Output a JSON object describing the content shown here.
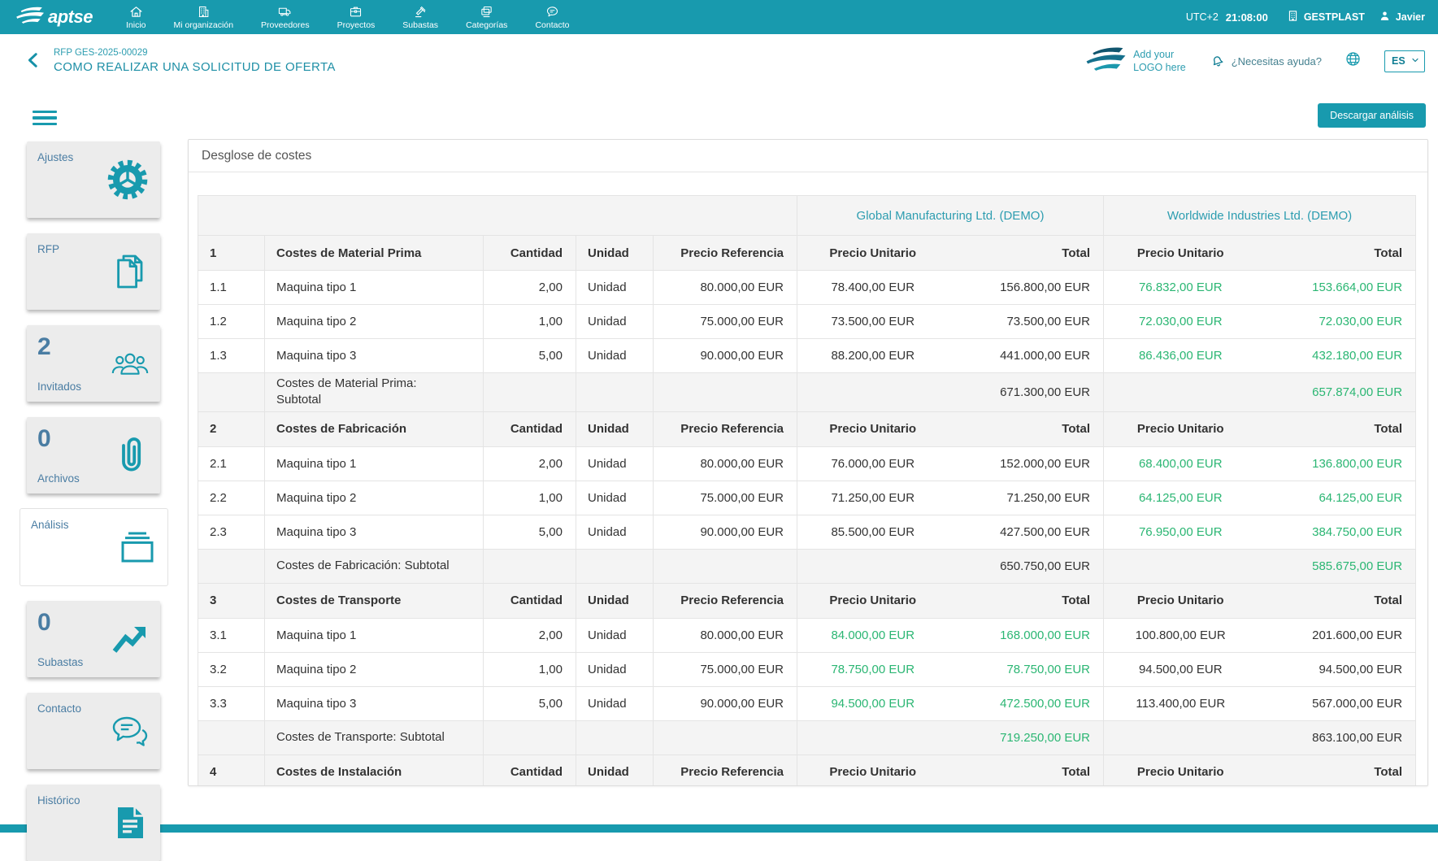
{
  "topnav": {
    "brand": "aptse",
    "items": [
      {
        "label": "Inicio",
        "icon": "home"
      },
      {
        "label": "Mi organización",
        "icon": "organization"
      },
      {
        "label": "Proveedores",
        "icon": "truck"
      },
      {
        "label": "Proyectos",
        "icon": "briefcase"
      },
      {
        "label": "Subastas",
        "icon": "auction"
      },
      {
        "label": "Categorías",
        "icon": "categories"
      },
      {
        "label": "Contacto",
        "icon": "chat"
      }
    ],
    "timezone": "UTC+2",
    "time": "21:08:00",
    "organization": "GESTPLAST",
    "user": "Javier"
  },
  "header": {
    "breadcrumb": "RFP GES-2025-00029",
    "title": "COMO REALIZAR UNA SOLICITUD DE OFERTA",
    "logo_placeholder_line1": "Add your",
    "logo_placeholder_line2": "LOGO here",
    "help_label": "¿Necesitas ayuda?",
    "language": "ES"
  },
  "toolbar": {
    "download_button": "Descargar análisis"
  },
  "sidebar": [
    {
      "label": "Ajustes",
      "icon": "gear",
      "count": "",
      "active": false
    },
    {
      "label": "RFP",
      "icon": "documents",
      "count": "",
      "active": false
    },
    {
      "label": "Invitados",
      "icon": "people",
      "count": "2",
      "active": false
    },
    {
      "label": "Archivos",
      "icon": "paperclip",
      "count": "0",
      "active": false
    },
    {
      "label": "Análisis",
      "icon": "panels",
      "count": "",
      "active": true
    },
    {
      "label": "Subastas",
      "icon": "trend",
      "count": "0",
      "active": false
    },
    {
      "label": "Contacto",
      "icon": "chatDouble",
      "count": "",
      "active": false
    },
    {
      "label": "Histórico",
      "icon": "historyDoc",
      "count": "",
      "active": false
    }
  ],
  "panel": {
    "title": "Desglose de costes",
    "suppliers": [
      "Global Manufacturing Ltd. (DEMO)",
      "Worldwide Industries Ltd. (DEMO)"
    ],
    "headers": {
      "cantidad": "Cantidad",
      "unidad": "Unidad",
      "precio_referencia": "Precio Referencia",
      "precio_unitario": "Precio Unitario",
      "total": "Total"
    },
    "sections": [
      {
        "num": "1",
        "name": "Costes de Material Prima",
        "items": [
          {
            "num": "1.1",
            "name": "Maquina tipo 1",
            "qty": "2,00",
            "unit": "Unidad",
            "ref": "80.000,00 EUR",
            "s1_unit": "78.400,00 EUR",
            "s1_total": "156.800,00 EUR",
            "s2_unit": "76.832,00 EUR",
            "s2_total": "153.664,00 EUR",
            "s1_best": false,
            "s2_best": true
          },
          {
            "num": "1.2",
            "name": "Maquina tipo 2",
            "qty": "1,00",
            "unit": "Unidad",
            "ref": "75.000,00 EUR",
            "s1_unit": "73.500,00 EUR",
            "s1_total": "73.500,00 EUR",
            "s2_unit": "72.030,00 EUR",
            "s2_total": "72.030,00 EUR",
            "s1_best": false,
            "s2_best": true
          },
          {
            "num": "1.3",
            "name": "Maquina tipo 3",
            "qty": "5,00",
            "unit": "Unidad",
            "ref": "90.000,00 EUR",
            "s1_unit": "88.200,00 EUR",
            "s1_total": "441.000,00 EUR",
            "s2_unit": "86.436,00 EUR",
            "s2_total": "432.180,00 EUR",
            "s1_best": false,
            "s2_best": true
          }
        ],
        "subtotal_label": "Costes de Material Prima: Subtotal",
        "s1_subtotal": "671.300,00 EUR",
        "s2_subtotal": "657.874,00 EUR",
        "s1_subtotal_best": false,
        "s2_subtotal_best": true
      },
      {
        "num": "2",
        "name": "Costes de Fabricación",
        "items": [
          {
            "num": "2.1",
            "name": "Maquina tipo 1",
            "qty": "2,00",
            "unit": "Unidad",
            "ref": "80.000,00 EUR",
            "s1_unit": "76.000,00 EUR",
            "s1_total": "152.000,00 EUR",
            "s2_unit": "68.400,00 EUR",
            "s2_total": "136.800,00 EUR",
            "s1_best": false,
            "s2_best": true
          },
          {
            "num": "2.2",
            "name": "Maquina tipo 2",
            "qty": "1,00",
            "unit": "Unidad",
            "ref": "75.000,00 EUR",
            "s1_unit": "71.250,00 EUR",
            "s1_total": "71.250,00 EUR",
            "s2_unit": "64.125,00 EUR",
            "s2_total": "64.125,00 EUR",
            "s1_best": false,
            "s2_best": true
          },
          {
            "num": "2.3",
            "name": "Maquina tipo 3",
            "qty": "5,00",
            "unit": "Unidad",
            "ref": "90.000,00 EUR",
            "s1_unit": "85.500,00 EUR",
            "s1_total": "427.500,00 EUR",
            "s2_unit": "76.950,00 EUR",
            "s2_total": "384.750,00 EUR",
            "s1_best": false,
            "s2_best": true
          }
        ],
        "subtotal_label": "Costes de Fabricación: Subtotal",
        "s1_subtotal": "650.750,00 EUR",
        "s2_subtotal": "585.675,00 EUR",
        "s1_subtotal_best": false,
        "s2_subtotal_best": true
      },
      {
        "num": "3",
        "name": "Costes de Transporte",
        "items": [
          {
            "num": "3.1",
            "name": "Maquina tipo 1",
            "qty": "2,00",
            "unit": "Unidad",
            "ref": "80.000,00 EUR",
            "s1_unit": "84.000,00 EUR",
            "s1_total": "168.000,00 EUR",
            "s2_unit": "100.800,00 EUR",
            "s2_total": "201.600,00 EUR",
            "s1_best": true,
            "s2_best": false
          },
          {
            "num": "3.2",
            "name": "Maquina tipo 2",
            "qty": "1,00",
            "unit": "Unidad",
            "ref": "75.000,00 EUR",
            "s1_unit": "78.750,00 EUR",
            "s1_total": "78.750,00 EUR",
            "s2_unit": "94.500,00 EUR",
            "s2_total": "94.500,00 EUR",
            "s1_best": true,
            "s2_best": false
          },
          {
            "num": "3.3",
            "name": "Maquina tipo 3",
            "qty": "5,00",
            "unit": "Unidad",
            "ref": "90.000,00 EUR",
            "s1_unit": "94.500,00 EUR",
            "s1_total": "472.500,00 EUR",
            "s2_unit": "113.400,00 EUR",
            "s2_total": "567.000,00 EUR",
            "s1_best": true,
            "s2_best": false
          }
        ],
        "subtotal_label": "Costes de Transporte: Subtotal",
        "s1_subtotal": "719.250,00 EUR",
        "s2_subtotal": "863.100,00 EUR",
        "s1_subtotal_best": true,
        "s2_subtotal_best": false
      },
      {
        "num": "4",
        "name": "Costes de Instalación",
        "items": []
      }
    ]
  },
  "colors": {
    "accent": "#189aae",
    "best_price_green": "#2bb673",
    "sidebar_text": "#4a7da3",
    "supplier_link": "#2d9db0"
  }
}
